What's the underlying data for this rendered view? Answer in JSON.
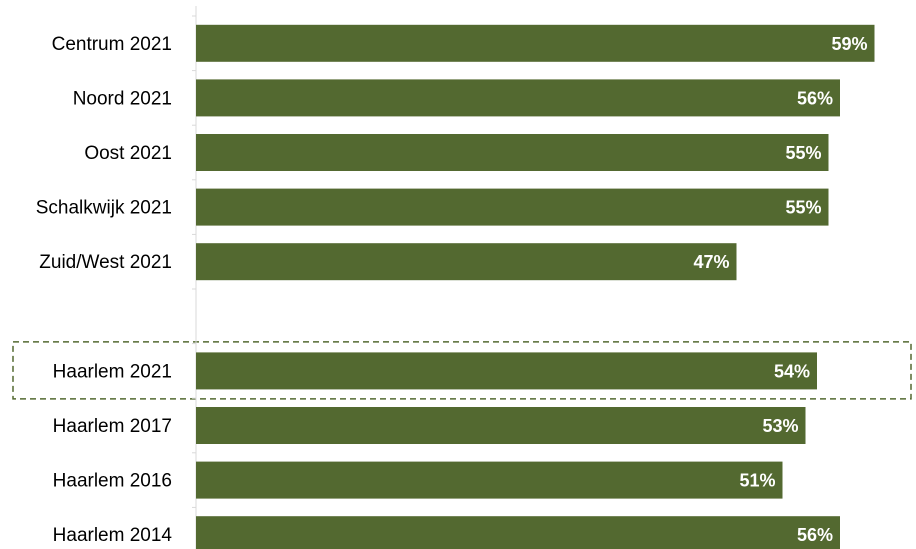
{
  "chart_data": {
    "type": "bar",
    "orientation": "horizontal",
    "categories": [
      "Centrum 2021",
      "Noord 2021",
      "Oost 2021",
      "Schalkwijk 2021",
      "Zuid/West 2021",
      "",
      "Haarlem 2021",
      "Haarlem 2017",
      "Haarlem 2016",
      "Haarlem 2014"
    ],
    "values": [
      59,
      56,
      55,
      55,
      47,
      null,
      54,
      53,
      51,
      56
    ],
    "value_labels": [
      "59%",
      "56%",
      "55%",
      "55%",
      "47%",
      "",
      "54%",
      "53%",
      "51%",
      "56%"
    ],
    "highlighted_category": "Haarlem 2021",
    "xlim": [
      0,
      60
    ],
    "grid": false,
    "legend": "none",
    "bar_color": "#536930",
    "highlight_border_color": "#536930"
  }
}
